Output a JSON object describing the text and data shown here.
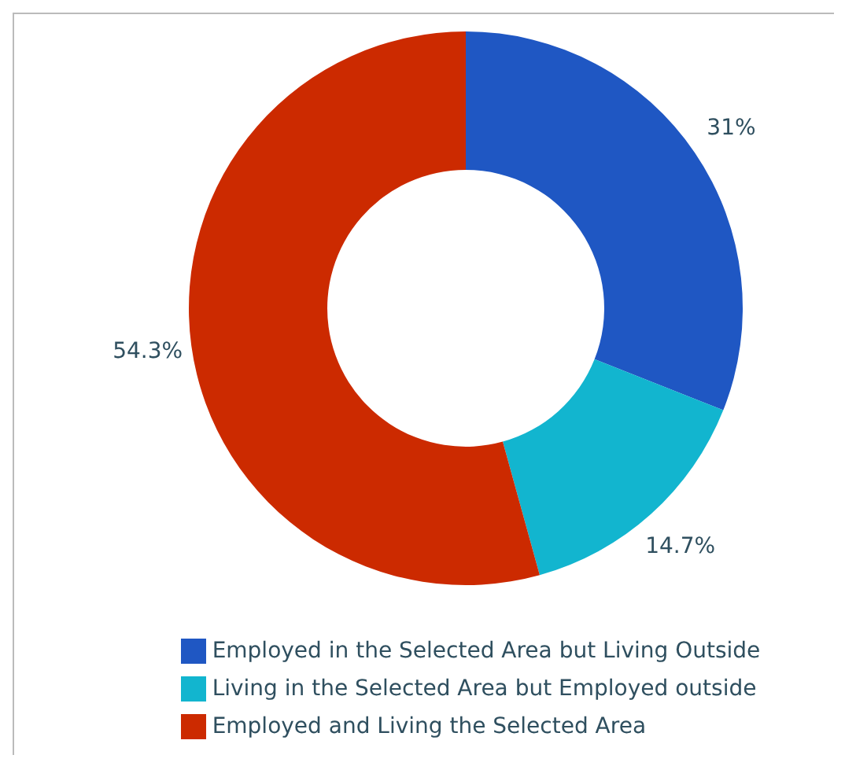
{
  "chart_data": {
    "type": "donut",
    "categories": [
      "Employed in the Selected Area but Living Outside",
      "Living in the Selected Area but Employed outside",
      "Employed and Living the Selected Area"
    ],
    "values": [
      31,
      14.7,
      54.3
    ],
    "colors": [
      "#1f57c3",
      "#12b5cf",
      "#cc2a00"
    ],
    "value_labels": [
      "31%",
      "14.7%",
      "54.3%"
    ],
    "legend": "bottom"
  }
}
